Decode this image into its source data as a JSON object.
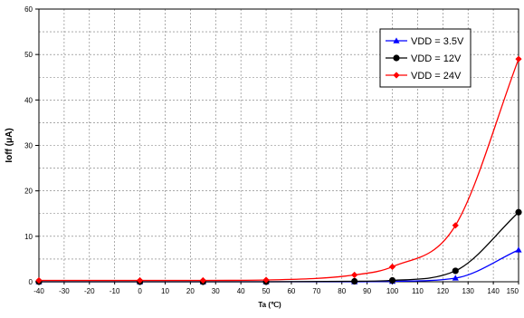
{
  "chart_data": {
    "type": "line",
    "title": "",
    "xlabel": "Ta (℃)",
    "ylabel": "Ioff (μA)",
    "xlim": [
      -40,
      150
    ],
    "ylim": [
      0,
      60
    ],
    "xticks": [
      -40,
      -30,
      -20,
      -10,
      0,
      10,
      20,
      30,
      40,
      50,
      60,
      70,
      80,
      90,
      100,
      110,
      120,
      130,
      140,
      150
    ],
    "yticks": [
      0,
      10,
      20,
      30,
      40,
      50,
      60
    ],
    "x": [
      -40,
      0,
      25,
      50,
      85,
      100,
      125,
      150
    ],
    "grid": true,
    "legend": "top-right",
    "series": [
      {
        "name": "VDD = 3.5V",
        "color": "#0000ff",
        "marker": "triangle",
        "values": [
          0.0,
          0.0,
          0.0,
          0.0,
          0.0,
          0.1,
          0.8,
          7.0
        ]
      },
      {
        "name": "VDD = 12V",
        "color": "#000000",
        "marker": "circle",
        "values": [
          0.0,
          0.0,
          0.0,
          0.0,
          0.1,
          0.3,
          2.4,
          15.3
        ]
      },
      {
        "name": "VDD = 24V",
        "color": "#ff0000",
        "marker": "diamond",
        "values": [
          0.3,
          0.3,
          0.3,
          0.4,
          1.5,
          3.3,
          12.4,
          49.0
        ]
      }
    ]
  }
}
